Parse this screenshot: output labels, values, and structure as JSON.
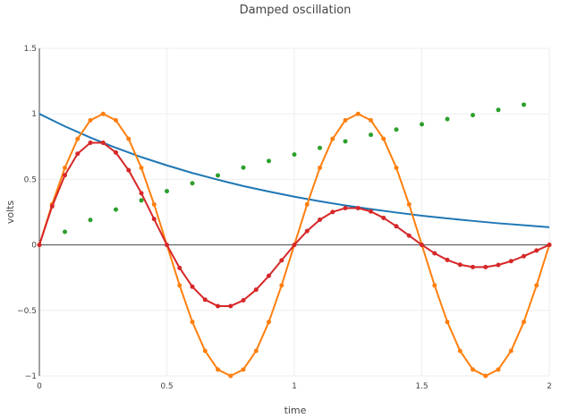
{
  "chart_data": {
    "type": "line",
    "title": "Damped oscillation",
    "xlabel": "time",
    "ylabel": "volts",
    "xlim": [
      0,
      2
    ],
    "ylim": [
      -1,
      1.5
    ],
    "xticks": [
      0,
      0.5,
      1,
      1.5,
      2
    ],
    "xtick_labels": [
      "0",
      "0.5",
      "1",
      "1.5",
      "2"
    ],
    "yticks": [
      -1,
      -0.5,
      0,
      0.5,
      1,
      1.5
    ],
    "ytick_labels": [
      "−1",
      "−0.5",
      "0",
      "0.5",
      "1",
      "1.5"
    ],
    "grid": true,
    "legend": false,
    "series": [
      {
        "color": "#1f77b4",
        "mode": "line",
        "x": [
          0,
          0.1,
          0.2,
          0.3,
          0.4,
          0.5,
          0.6,
          0.7,
          0.8,
          0.9,
          1.0,
          1.1,
          1.2,
          1.3,
          1.4,
          1.5,
          1.6,
          1.7,
          1.8,
          1.9,
          2.0
        ],
        "y": [
          1.0,
          0.905,
          0.819,
          0.741,
          0.67,
          0.607,
          0.549,
          0.497,
          0.449,
          0.407,
          0.368,
          0.333,
          0.301,
          0.273,
          0.247,
          0.223,
          0.202,
          0.183,
          0.165,
          0.15,
          0.135
        ]
      },
      {
        "color": "#ff7f0e",
        "mode": "line+markers",
        "x": [
          0,
          0.05,
          0.1,
          0.15,
          0.2,
          0.25,
          0.3,
          0.35,
          0.4,
          0.45,
          0.5,
          0.55,
          0.6,
          0.65,
          0.7,
          0.75,
          0.8,
          0.85,
          0.9,
          0.95,
          1.0,
          1.05,
          1.1,
          1.15,
          1.2,
          1.25,
          1.3,
          1.35,
          1.4,
          1.45,
          1.5,
          1.55,
          1.6,
          1.65,
          1.7,
          1.75,
          1.8,
          1.85,
          1.9,
          1.95,
          2.0
        ],
        "y": [
          0,
          0.309,
          0.588,
          0.809,
          0.951,
          1.0,
          0.951,
          0.809,
          0.588,
          0.309,
          0,
          -0.309,
          -0.588,
          -0.809,
          -0.951,
          -1.0,
          -0.951,
          -0.809,
          -0.588,
          -0.309,
          0,
          0.309,
          0.588,
          0.809,
          0.951,
          1.0,
          0.951,
          0.809,
          0.588,
          0.309,
          0,
          -0.309,
          -0.588,
          -0.809,
          -0.951,
          -1.0,
          -0.951,
          -0.809,
          -0.588,
          -0.309,
          0
        ]
      },
      {
        "color": "#2ca02c",
        "mode": "markers",
        "x": [
          0.1,
          0.2,
          0.3,
          0.4,
          0.5,
          0.6,
          0.7,
          0.8,
          0.9,
          1.0,
          1.1,
          1.2,
          1.3,
          1.4,
          1.5,
          1.6,
          1.7,
          1.8,
          1.9
        ],
        "y": [
          0.1,
          0.19,
          0.27,
          0.34,
          0.41,
          0.47,
          0.53,
          0.59,
          0.64,
          0.69,
          0.74,
          0.79,
          0.84,
          0.88,
          0.92,
          0.96,
          0.99,
          1.03,
          1.07
        ]
      },
      {
        "color": "#d62728",
        "mode": "line+markers",
        "x": [
          0,
          0.05,
          0.1,
          0.15,
          0.2,
          0.25,
          0.3,
          0.35,
          0.4,
          0.45,
          0.5,
          0.55,
          0.6,
          0.65,
          0.7,
          0.75,
          0.8,
          0.85,
          0.9,
          0.95,
          1.0,
          1.05,
          1.1,
          1.15,
          1.2,
          1.25,
          1.3,
          1.35,
          1.4,
          1.45,
          1.5,
          1.55,
          1.6,
          1.65,
          1.7,
          1.75,
          1.8,
          1.85,
          1.9,
          1.95,
          2.0
        ],
        "y": [
          0,
          0.294,
          0.532,
          0.696,
          0.779,
          0.779,
          0.705,
          0.57,
          0.394,
          0.197,
          0,
          -0.176,
          -0.319,
          -0.418,
          -0.467,
          -0.467,
          -0.423,
          -0.342,
          -0.236,
          -0.118,
          0,
          0.106,
          0.192,
          0.251,
          0.281,
          0.281,
          0.255,
          0.206,
          0.142,
          0.071,
          0,
          -0.064,
          -0.115,
          -0.151,
          -0.169,
          -0.169,
          -0.153,
          -0.124,
          -0.086,
          -0.043,
          0
        ]
      }
    ]
  }
}
